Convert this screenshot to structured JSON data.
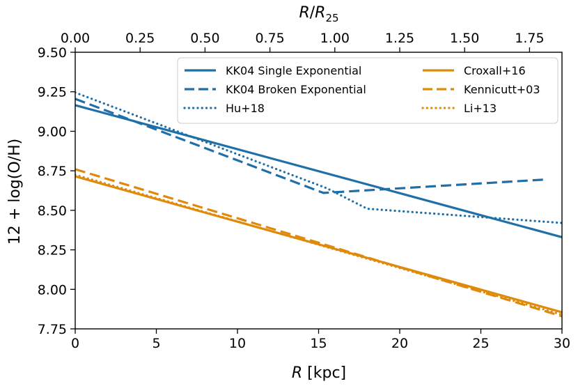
{
  "chart_data": {
    "type": "line",
    "xlabel": "R [kpc]",
    "ylabel": "12 + log(O/H)",
    "top_xlabel": "R/R25",
    "xlim": [
      0,
      30
    ],
    "ylim": [
      7.75,
      9.5
    ],
    "top_xlim": [
      0,
      1.875
    ],
    "x_ticks": [
      0,
      5,
      10,
      15,
      20,
      25,
      30
    ],
    "x_tick_labels": [
      "0",
      "5",
      "10",
      "15",
      "20",
      "25",
      "30"
    ],
    "y_ticks": [
      7.75,
      8.0,
      8.25,
      8.5,
      8.75,
      9.0,
      9.25,
      9.5
    ],
    "y_tick_labels": [
      "7.75",
      "8.00",
      "8.25",
      "8.50",
      "8.75",
      "9.00",
      "9.25",
      "9.50"
    ],
    "top_ticks": [
      0,
      0.25,
      0.5,
      0.75,
      1.0,
      1.25,
      1.5,
      1.75
    ],
    "top_tick_labels": [
      "0.00",
      "0.25",
      "0.50",
      "0.75",
      "1.00",
      "1.25",
      "1.50",
      "1.75"
    ],
    "grid": false,
    "legend_position": "top-right",
    "colors": {
      "blue": "#1f6fa8",
      "orange": "#e08a0c"
    },
    "series": [
      {
        "name": "KK04 Single Exponential",
        "color": "blue",
        "style": "solid",
        "x": [
          0,
          30
        ],
        "y": [
          9.165,
          8.33
        ]
      },
      {
        "name": "KK04 Broken Exponential",
        "color": "blue",
        "style": "dashed",
        "x": [
          0,
          15.3,
          29
        ],
        "y": [
          9.205,
          8.61,
          8.695
        ]
      },
      {
        "name": "Hu+18",
        "color": "blue",
        "style": "dotted",
        "x": [
          0,
          15.5,
          18,
          30
        ],
        "y": [
          9.245,
          8.64,
          8.51,
          8.42
        ]
      },
      {
        "name": "Croxall+16",
        "color": "orange",
        "style": "solid",
        "x": [
          0,
          30
        ],
        "y": [
          8.715,
          7.855
        ]
      },
      {
        "name": "Kennicutt+03",
        "color": "orange",
        "style": "dashed",
        "x": [
          0,
          30
        ],
        "y": [
          8.76,
          7.83
        ]
      },
      {
        "name": "Li+13",
        "color": "orange",
        "style": "dotted",
        "x": [
          0,
          30
        ],
        "y": [
          8.725,
          7.84
        ]
      }
    ],
    "legend_columns": [
      [
        "KK04 Single Exponential",
        "KK04 Broken Exponential",
        "Hu+18"
      ],
      [
        "Croxall+16",
        "Kennicutt+03",
        "Li+13"
      ]
    ]
  }
}
